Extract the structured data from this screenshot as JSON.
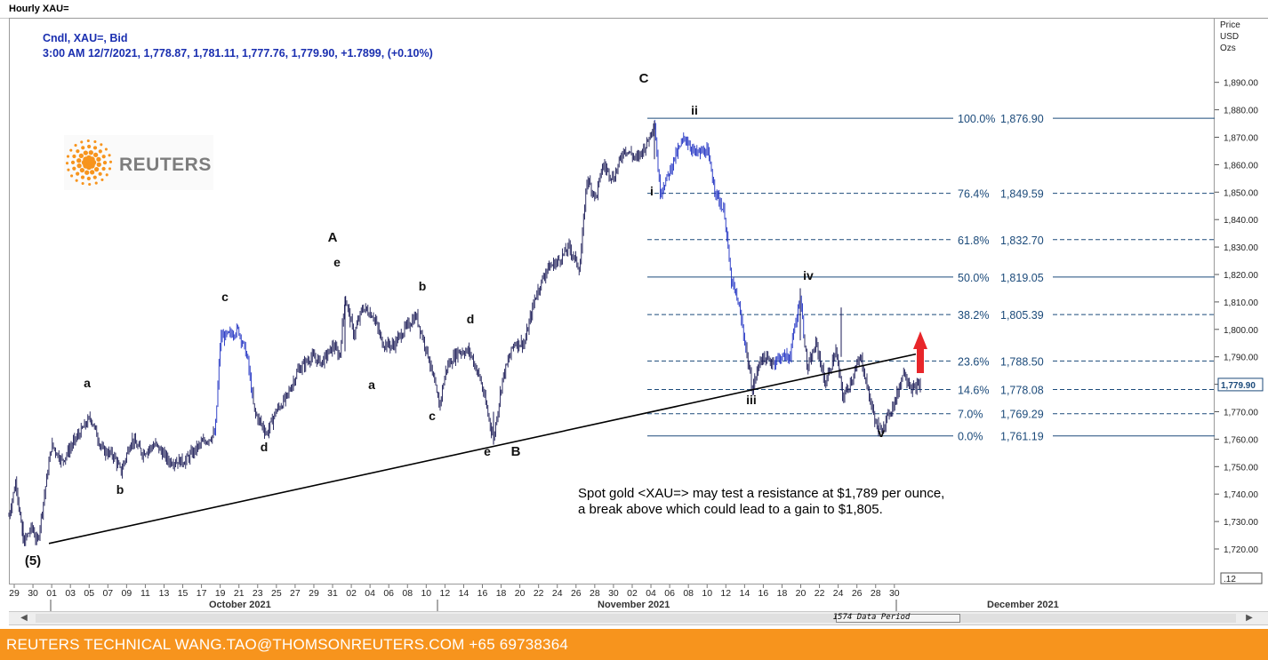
{
  "window_title": "Hourly XAU=",
  "header": {
    "line1": "Cndl, XAU=, Bid",
    "line2": "3:00 AM 12/7/2021, 1,778.87, 1,781.11, 1,777.76, 1,779.90, +1.7899, (+0.10%)"
  },
  "logo": {
    "word": "REUTERS",
    "color": "#f7941d"
  },
  "axis": {
    "title": [
      "Price",
      "USD",
      "Ozs"
    ],
    "scale_box": ".12"
  },
  "months": {
    "oct": "October 2021",
    "nov": "November 2021",
    "dec": "December 2021"
  },
  "data_period": "1574 Data Period",
  "note": "Spot gold <XAU=> may test a resistance at $1,789 per ounce, a break above which could lead to a gain to $1,805.",
  "footer": "REUTERS TECHNICAL  WANG.TAO@THOMSONREUTERS.COM  +65 69738364",
  "colors": {
    "candle": "#1a1a7a",
    "candle_trend": "#1d2fc2",
    "fib": "#1b4a7a",
    "arrow": "#e8262a",
    "footer": "#f7941d"
  },
  "chart_data": {
    "type": "candlestick",
    "instrument": "XAU=",
    "ylim": [
      1712,
      1895
    ],
    "y_ticks": [
      1720,
      1730,
      1740,
      1750,
      1760,
      1770,
      1780,
      1790,
      1800,
      1810,
      1820,
      1830,
      1840,
      1850,
      1860,
      1870,
      1880,
      1890
    ],
    "y_tick_labels": [
      "1,720.00",
      "1,730.00",
      "1,740.00",
      "1,750.00",
      "1,760.00",
      "1,770.00",
      "1,780.00",
      "1,790.00",
      "1,800.00",
      "1,810.00",
      "1,820.00",
      "1,830.00",
      "1,840.00",
      "1,850.00",
      "1,860.00",
      "1,870.00",
      "1,880.00",
      "1,890.00"
    ],
    "last_price": "1,779.90",
    "x_ticks": [
      "29",
      "30",
      "01",
      "04",
      "05",
      "06",
      "07",
      "08",
      "11",
      "12",
      "13",
      "14",
      "15",
      "18",
      "19",
      "20",
      "21",
      "22",
      "25",
      "26",
      "27",
      "28",
      "29",
      "01",
      "02",
      "03",
      "04",
      "05",
      "08",
      "09",
      "10",
      "11",
      "12",
      "15",
      "16",
      "17",
      "18",
      "19",
      "22",
      "23",
      "24",
      "25",
      "26",
      "29",
      "30",
      "01",
      "02",
      "03",
      "06",
      "07",
      "08",
      "09",
      "10",
      "13",
      "14",
      "15",
      "16",
      "17",
      "20",
      "21",
      "22",
      "23",
      "24",
      "27",
      "28",
      "29",
      "30"
    ],
    "x_tick_display": [
      "29",
      "30",
      "01",
      "03",
      "05",
      "07",
      "09",
      "11",
      "13",
      "15",
      "17",
      "19",
      "21",
      "23",
      "25",
      "27",
      "29",
      "31",
      "02",
      "04",
      "06",
      "08",
      "10",
      "12",
      "14",
      "16",
      "18",
      "20",
      "22",
      "24",
      "26",
      "28",
      "30",
      "02",
      "04",
      "06",
      "08",
      "10",
      "12",
      "14",
      "16",
      "18",
      "20",
      "22",
      "24",
      "26",
      "28",
      "30"
    ],
    "price_path": [
      [
        0,
        1732
      ],
      [
        8,
        1745
      ],
      [
        16,
        1722
      ],
      [
        26,
        1728
      ],
      [
        32,
        1722
      ],
      [
        40,
        1740
      ],
      [
        48,
        1758
      ],
      [
        60,
        1752
      ],
      [
        75,
        1760
      ],
      [
        92,
        1768
      ],
      [
        105,
        1756
      ],
      [
        118,
        1754
      ],
      [
        126,
        1748
      ],
      [
        138,
        1760
      ],
      [
        150,
        1755
      ],
      [
        165,
        1758
      ],
      [
        180,
        1752
      ],
      [
        198,
        1752
      ],
      [
        215,
        1758
      ],
      [
        232,
        1762
      ],
      [
        238,
        1797
      ],
      [
        248,
        1798
      ],
      [
        258,
        1800
      ],
      [
        268,
        1790
      ],
      [
        276,
        1770
      ],
      [
        290,
        1762
      ],
      [
        300,
        1770
      ],
      [
        312,
        1775
      ],
      [
        325,
        1785
      ],
      [
        340,
        1790
      ],
      [
        352,
        1788
      ],
      [
        365,
        1794
      ],
      [
        372,
        1790
      ],
      [
        378,
        1812
      ],
      [
        388,
        1798
      ],
      [
        398,
        1808
      ],
      [
        410,
        1805
      ],
      [
        420,
        1795
      ],
      [
        432,
        1794
      ],
      [
        445,
        1800
      ],
      [
        458,
        1805
      ],
      [
        472,
        1790
      ],
      [
        484,
        1772
      ],
      [
        492,
        1786
      ],
      [
        505,
        1792
      ],
      [
        518,
        1792
      ],
      [
        530,
        1782
      ],
      [
        545,
        1760
      ],
      [
        555,
        1782
      ],
      [
        568,
        1795
      ],
      [
        580,
        1795
      ],
      [
        592,
        1812
      ],
      [
        605,
        1822
      ],
      [
        618,
        1825
      ],
      [
        630,
        1830
      ],
      [
        642,
        1822
      ],
      [
        650,
        1855
      ],
      [
        660,
        1848
      ],
      [
        668,
        1860
      ],
      [
        680,
        1855
      ],
      [
        692,
        1866
      ],
      [
        706,
        1862
      ],
      [
        718,
        1868
      ],
      [
        726,
        1876
      ],
      [
        732,
        1850
      ],
      [
        740,
        1855
      ],
      [
        748,
        1862
      ],
      [
        760,
        1870
      ],
      [
        772,
        1864
      ],
      [
        785,
        1865
      ],
      [
        795,
        1850
      ],
      [
        805,
        1842
      ],
      [
        812,
        1818
      ],
      [
        820,
        1810
      ],
      [
        828,
        1795
      ],
      [
        836,
        1778
      ],
      [
        846,
        1790
      ],
      [
        858,
        1788
      ],
      [
        868,
        1790
      ],
      [
        878,
        1790
      ],
      [
        890,
        1812
      ],
      [
        898,
        1785
      ],
      [
        908,
        1795
      ],
      [
        918,
        1780
      ],
      [
        930,
        1792
      ],
      [
        938,
        1775
      ],
      [
        948,
        1782
      ],
      [
        958,
        1790
      ],
      [
        968,
        1775
      ],
      [
        978,
        1762
      ],
      [
        988,
        1768
      ],
      [
        998,
        1775
      ],
      [
        1006,
        1785
      ],
      [
        1016,
        1778
      ],
      [
        1025,
        1780
      ]
    ],
    "fib_levels": [
      {
        "label": "100.0%",
        "value": 1876.9,
        "text": "1,876.90",
        "style": "solid"
      },
      {
        "label": "76.4%",
        "value": 1849.59,
        "text": "1,849.59",
        "style": "dashed"
      },
      {
        "label": "61.8%",
        "value": 1832.7,
        "text": "1,832.70",
        "style": "dashed"
      },
      {
        "label": "50.0%",
        "value": 1819.05,
        "text": "1,819.05",
        "style": "solid"
      },
      {
        "label": "38.2%",
        "value": 1805.39,
        "text": "1,805.39",
        "style": "dashed"
      },
      {
        "label": "23.6%",
        "value": 1788.5,
        "text": "1,788.50",
        "style": "dashed"
      },
      {
        "label": "14.6%",
        "value": 1778.08,
        "text": "1,778.08",
        "style": "dashed"
      },
      {
        "label": "7.0%",
        "value": 1769.29,
        "text": "1,769.29",
        "style": "dashed"
      },
      {
        "label": "0.0%",
        "value": 1761.19,
        "text": "1,761.19",
        "style": "solid"
      }
    ],
    "trendline": {
      "from": [
        1722,
        "30 Sep"
      ],
      "to": [
        1791,
        "07 Dec"
      ]
    },
    "wave_labels": [
      "(5)",
      "a",
      "b",
      "c",
      "d",
      "A",
      "e",
      "a",
      "b",
      "c",
      "d",
      "e",
      "B",
      "C",
      "i",
      "ii",
      "iii",
      "iv",
      "v"
    ]
  }
}
